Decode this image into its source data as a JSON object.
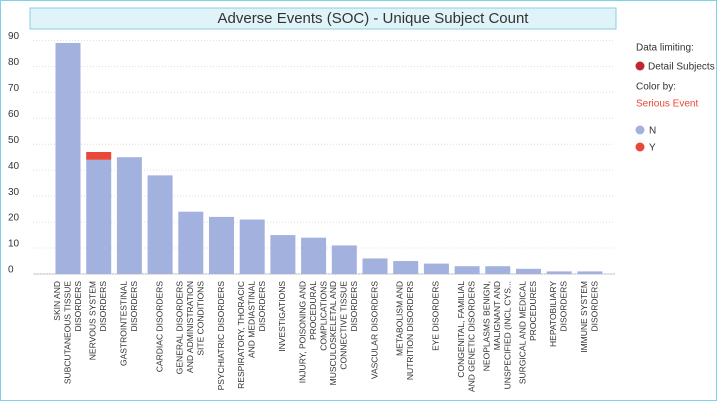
{
  "chart_data": {
    "type": "stacked-bar",
    "title": "Adverse Events (SOC) - Unique Subject Count",
    "categories": [
      [
        "SKIN AND",
        "SUBCUTANEOUS TISSUE",
        "DISORDERS"
      ],
      [
        "NERVOUS SYSTEM",
        "DISORDERS"
      ],
      [
        "GASTROINTESTINAL",
        "DISORDERS"
      ],
      [
        "CARDIAC DISORDERS"
      ],
      [
        "GENERAL DISORDERS",
        "AND ADMINISTRATION",
        "SITE CONDITIONS"
      ],
      [
        "PSYCHIATRIC DISORDERS"
      ],
      [
        "RESPIRATORY, THORACIC",
        "AND MEDIASTINAL",
        "DISORDERS"
      ],
      [
        "INVESTIGATIONS"
      ],
      [
        "INJURY, POISONING AND",
        "PROCEDURAL",
        "COMPLICATIONS"
      ],
      [
        "MUSCULOSKELETAL AND",
        "CONNECTIVE TISSUE",
        "DISORDERS"
      ],
      [
        "VASCULAR DISORDERS"
      ],
      [
        "METABOLISM AND",
        "NUTRITION DISORDERS"
      ],
      [
        "EYE DISORDERS"
      ],
      [
        "CONGENITAL, FAMILIAL",
        "AND GENETIC DISORDERS"
      ],
      [
        "NEOPLASMS BENIGN,",
        "MALIGNANT AND",
        "UNSPECIFIED (INCL CYS..."
      ],
      [
        "SURGICAL AND MEDICAL",
        "PROCEDURES"
      ],
      [
        "HEPATOBILIARY",
        "DISORDERS"
      ],
      [
        "IMMUNE SYSTEM",
        "DISORDERS"
      ]
    ],
    "series": [
      {
        "name": "N",
        "color": "#a3b1de",
        "values": [
          89,
          44,
          45,
          38,
          24,
          22,
          21,
          15,
          14,
          11,
          6,
          5,
          4,
          3,
          3,
          2,
          1,
          1
        ]
      },
      {
        "name": "Y",
        "color": "#e8473a",
        "values": [
          0,
          3,
          0,
          0,
          0,
          0,
          0,
          0,
          0,
          0,
          0,
          0,
          0,
          0,
          0,
          0,
          0,
          0
        ]
      }
    ],
    "ylim": [
      0,
      94
    ],
    "yticks": [
      0,
      10,
      20,
      30,
      40,
      50,
      60,
      70,
      80,
      90
    ],
    "grid": true,
    "legend": {
      "data_limiting_title": "Data limiting:",
      "data_limiting_item": "Detail Subjects",
      "data_limiting_color": "#c0262b",
      "color_by_title": "Color by:",
      "color_by_field": "Serious Event"
    }
  }
}
